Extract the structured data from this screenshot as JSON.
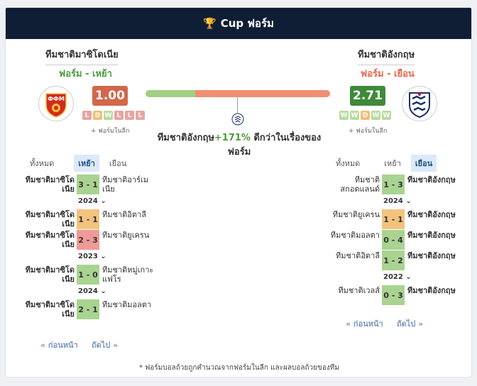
{
  "header": {
    "title": "Cup ฟอร์ม"
  },
  "home": {
    "name": "ทีมชาติมาซิโดเนีย",
    "form_label": "ฟอร์ม - เหย้า",
    "rating": "1.00",
    "rating_color": "#d2674a",
    "pills": [
      "L",
      "D",
      "W",
      "L",
      "L",
      "L"
    ],
    "league_note": "+ ฟอร์มในลีก",
    "tabs": [
      "ทั้งหมด",
      "เหย้า",
      "เยือน"
    ],
    "matches": [
      {
        "team": "ทีมชาติมาซิโดเนีย",
        "score": "3 - 1",
        "result": "W",
        "opponent": "ทีมชาติอาร์เมเนีย"
      },
      {
        "year": "2024"
      },
      {
        "team": "ทีมชาติมาซิโดเนีย",
        "score": "1 - 1",
        "result": "D",
        "opponent": "ทีมชาติอิตาลี"
      },
      {
        "team": "ทีมชาติมาซิโดเนีย",
        "score": "2 - 3",
        "result": "L",
        "opponent": "ทีมชาติยูเครน"
      },
      {
        "year": "2023"
      },
      {
        "team": "ทีมชาติมาซิโดเนีย",
        "score": "1 - 0",
        "result": "W",
        "opponent": "ทีมชาติหมู่เกาะแฟโร"
      },
      {
        "year": "2024"
      },
      {
        "team": "ทีมชาติมาซิโดเนีย",
        "score": "2 - 1",
        "result": "W",
        "opponent": "ทีมชาติมอลตา"
      }
    ],
    "prev": "« ก่อนหน้า",
    "next": "ถัดไป »"
  },
  "away": {
    "name": "ทีมชาติอังกฤษ",
    "form_label": "ฟอร์ม - เยือน",
    "rating": "2.71",
    "rating_color": "#3f8a3a",
    "pills": [
      "W",
      "W",
      "D",
      "W",
      "W"
    ],
    "league_note": "+ ฟอร์มในลีก",
    "tabs": [
      "ทั้งหมด",
      "เหย้า",
      "เยือน"
    ],
    "matches": [
      {
        "team": "ทีมชาติสกอตแลนด์",
        "score": "1 - 3",
        "result": "W",
        "opponent": "ทีมชาติอังกฤษ"
      },
      {
        "year": "2024"
      },
      {
        "team": "ทีมชาติยูเครน",
        "score": "1 - 1",
        "result": "D",
        "opponent": "ทีมชาติอังกฤษ"
      },
      {
        "team": "ทีมชาติมอลตา",
        "score": "0 - 4",
        "result": "W",
        "opponent": "ทีมชาติอังกฤษ"
      },
      {
        "team": "ทีมชาติอิตาลี",
        "score": "1 - 2",
        "result": "W",
        "opponent": "ทีมชาติอังกฤษ"
      },
      {
        "year": "2022"
      },
      {
        "team": "ทีมชาติเวลส์",
        "score": "0 - 3",
        "result": "W",
        "opponent": "ทีมชาติอังกฤษ"
      }
    ],
    "prev": "« ก่อนหน้า",
    "next": "ถัดไป »"
  },
  "comparison": {
    "home_share": 0.27,
    "line1_prefix": "ทีมชาติอังกฤษ",
    "line1_pct": "+171%",
    "line1_suffix": " ดีกว่าในเรื่องของ",
    "line2": "ฟอร์ม"
  },
  "footnote": "* ฟอร์มบอลถ้วยถูกคำนวณจากฟอร์มในลีก และผลบอลถ้วยของทีม"
}
